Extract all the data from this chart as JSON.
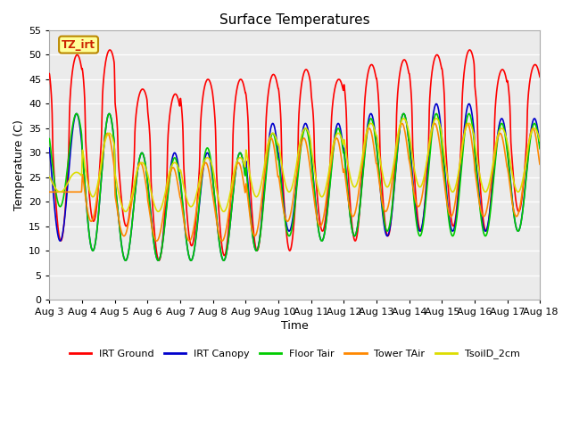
{
  "title": "Surface Temperatures",
  "xlabel": "Time",
  "ylabel": "Temperature (C)",
  "ylim": [
    0,
    55
  ],
  "yticks": [
    0,
    5,
    10,
    15,
    20,
    25,
    30,
    35,
    40,
    45,
    50,
    55
  ],
  "x_tick_labels": [
    "Aug 3",
    "Aug 4",
    "Aug 5",
    "Aug 6",
    "Aug 7",
    "Aug 8",
    "Aug 9",
    "Aug 10",
    "Aug 11",
    "Aug 12",
    "Aug 13",
    "Aug 14",
    "Aug 15",
    "Aug 16",
    "Aug 17",
    "Aug 18"
  ],
  "series": [
    {
      "name": "IRT Ground",
      "color": "#FF0000",
      "lw": 1.2
    },
    {
      "name": "IRT Canopy",
      "color": "#0000CC",
      "lw": 1.2
    },
    {
      "name": "Floor Tair",
      "color": "#00CC00",
      "lw": 1.2
    },
    {
      "name": "Tower TAir",
      "color": "#FF8800",
      "lw": 1.2
    },
    {
      "name": "TsoilD_2cm",
      "color": "#DDDD00",
      "lw": 1.2
    }
  ],
  "legend_label": "TZ_irt",
  "legend_box_color": "#FFFF99",
  "legend_box_edge": "#BB8800",
  "plot_bg": "#EBEBEB"
}
